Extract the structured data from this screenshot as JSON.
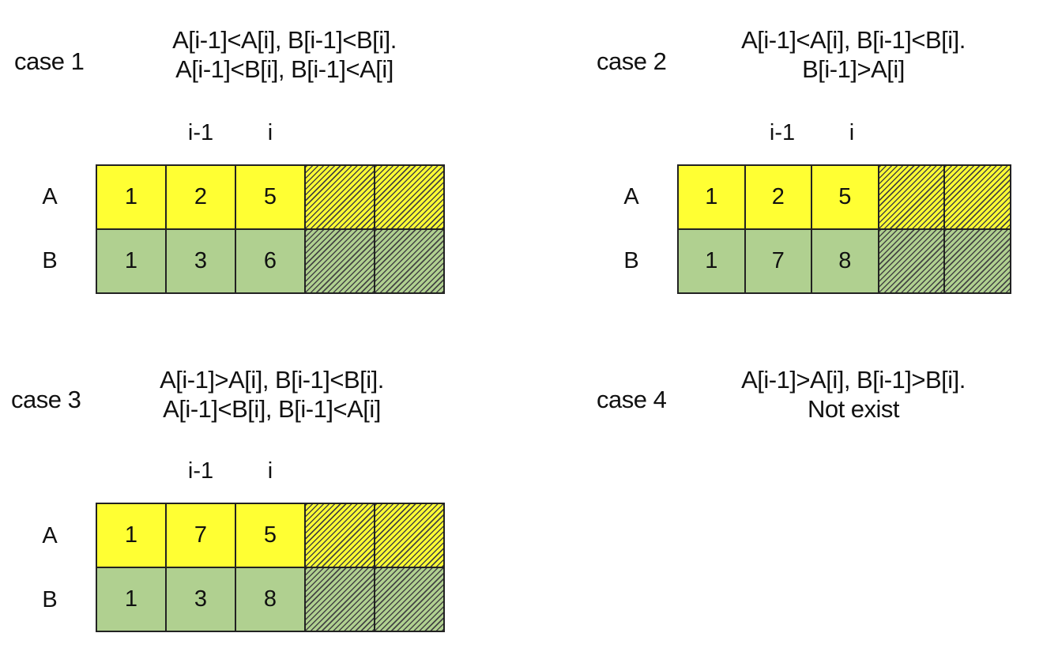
{
  "cases": [
    {
      "label": "case 1",
      "cond_line1": "A[i-1]<A[i], B[i-1]<B[i].",
      "cond_line2": "A[i-1]<B[i], B[i-1]<A[i]",
      "idx_prev": "i-1",
      "idx_cur": "i",
      "row_a_label": "A",
      "row_b_label": "B",
      "a_values": [
        "1",
        "2",
        "5"
      ],
      "b_values": [
        "1",
        "3",
        "6"
      ]
    },
    {
      "label": "case 2",
      "cond_line1": "A[i-1]<A[i], B[i-1]<B[i].",
      "cond_line2": "B[i-1]>A[i]",
      "idx_prev": "i-1",
      "idx_cur": "i",
      "row_a_label": "A",
      "row_b_label": "B",
      "a_values": [
        "1",
        "2",
        "5"
      ],
      "b_values": [
        "1",
        "7",
        "8"
      ]
    },
    {
      "label": "case 3",
      "cond_line1": "A[i-1]>A[i], B[i-1]<B[i].",
      "cond_line2": "A[i-1]<B[i], B[i-1]<A[i]",
      "idx_prev": "i-1",
      "idx_cur": "i",
      "row_a_label": "A",
      "row_b_label": "B",
      "a_values": [
        "1",
        "7",
        "5"
      ],
      "b_values": [
        "1",
        "3",
        "8"
      ]
    },
    {
      "label": "case 4",
      "cond_line1": "A[i-1]>A[i], B[i-1]>B[i].",
      "cond_line2": "Not exist"
    }
  ],
  "colors": {
    "array_a": "#ffff33",
    "array_b": "#b0d090",
    "border": "#222222"
  }
}
